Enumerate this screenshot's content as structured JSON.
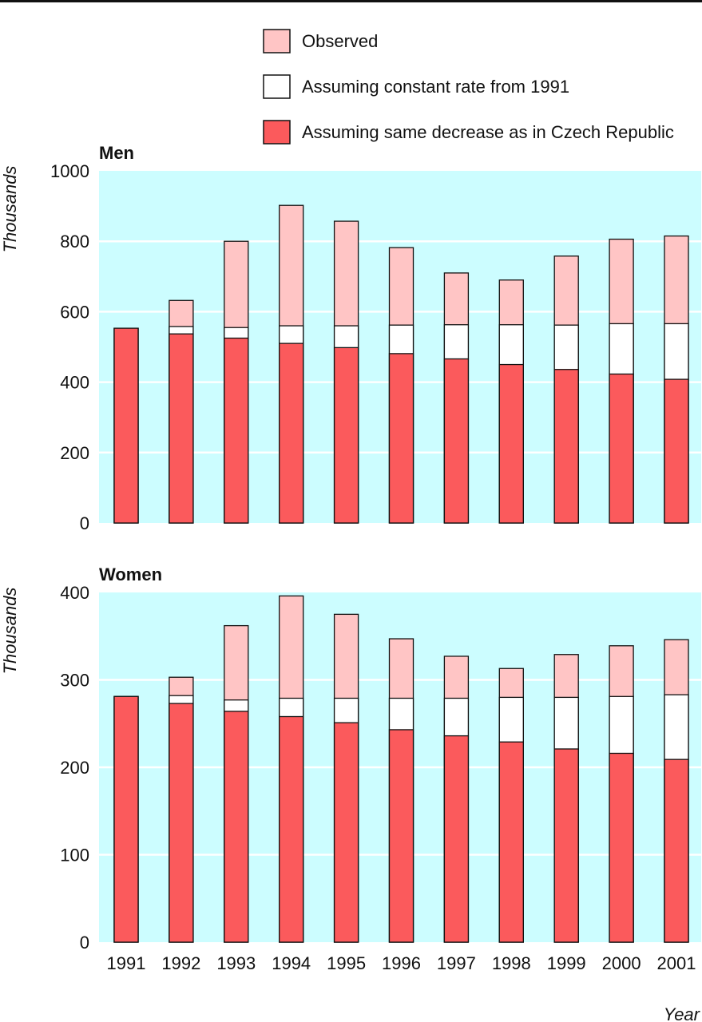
{
  "legend": [
    {
      "label": "Observed",
      "color": "#ffc5c5"
    },
    {
      "label": "Assuming constant rate from 1991",
      "color": "#ffffff"
    },
    {
      "label": "Assuming same decrease as in Czech Republic",
      "color": "#fb5a5c"
    }
  ],
  "chart_data": [
    {
      "type": "bar",
      "title": "Men",
      "ylabel": "Thousands",
      "xlabel": "",
      "ylim": [
        0,
        1000
      ],
      "yticks": [
        0,
        200,
        400,
        600,
        800,
        1000
      ],
      "grid": true,
      "background": "#ccfdff",
      "categories": [
        "1991",
        "1992",
        "1993",
        "1994",
        "1995",
        "1996",
        "1997",
        "1998",
        "1999",
        "2000",
        "2001"
      ],
      "series": [
        {
          "name": "Observed",
          "values": [
            553,
            632,
            800,
            902,
            857,
            782,
            710,
            690,
            758,
            806,
            815
          ]
        },
        {
          "name": "Assuming constant rate from 1991",
          "values": [
            553,
            558,
            555,
            560,
            560,
            562,
            563,
            563,
            562,
            566,
            566
          ]
        },
        {
          "name": "Assuming same decrease as in Czech Republic",
          "values": [
            553,
            537,
            525,
            510,
            498,
            481,
            466,
            450,
            436,
            423,
            408
          ]
        }
      ]
    },
    {
      "type": "bar",
      "title": "Women",
      "ylabel": "Thousands",
      "xlabel": "Year",
      "ylim": [
        0,
        400
      ],
      "yticks": [
        0,
        100,
        200,
        300,
        400
      ],
      "grid": true,
      "background": "#ccfdff",
      "categories": [
        "1991",
        "1992",
        "1993",
        "1994",
        "1995",
        "1996",
        "1997",
        "1998",
        "1999",
        "2000",
        "2001"
      ],
      "series": [
        {
          "name": "Observed",
          "values": [
            281,
            303,
            362,
            396,
            375,
            347,
            327,
            313,
            329,
            339,
            346
          ]
        },
        {
          "name": "Assuming constant rate from 1991",
          "values": [
            281,
            282,
            277,
            279,
            279,
            279,
            279,
            280,
            280,
            281,
            283
          ]
        },
        {
          "name": "Assuming same decrease as in Czech Republic",
          "values": [
            281,
            273,
            264,
            258,
            251,
            243,
            236,
            229,
            221,
            216,
            209
          ]
        }
      ]
    }
  ]
}
